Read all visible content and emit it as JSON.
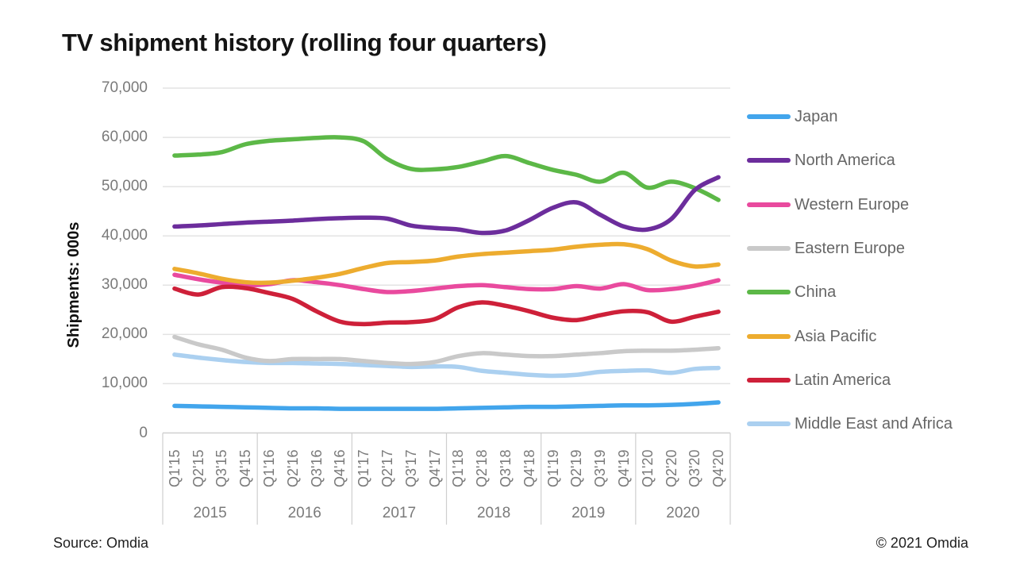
{
  "title": "TV shipment history (rolling four quarters)",
  "y_axis": {
    "title": "Shipments: 000s",
    "tick_labels": [
      "0",
      "10,000",
      "20,000",
      "30,000",
      "40,000",
      "50,000",
      "60,000",
      "70,000"
    ]
  },
  "x_axis": {
    "quarter_labels": [
      "Q1'15",
      "Q2'15",
      "Q3'15",
      "Q4'15",
      "Q1'16",
      "Q2'16",
      "Q3'16",
      "Q4'16",
      "Q1'17",
      "Q2'17",
      "Q3'17",
      "Q4'17",
      "Q1'18",
      "Q2'18",
      "Q3'18",
      "Q4'18",
      "Q1'19",
      "Q2'19",
      "Q3'19",
      "Q4'19",
      "Q1'20",
      "Q2'20",
      "Q3'20",
      "Q4'20"
    ],
    "year_labels": [
      "2015",
      "2016",
      "2017",
      "2018",
      "2019",
      "2020"
    ]
  },
  "legend": [
    {
      "label": "Japan",
      "color": "#42A5EC"
    },
    {
      "label": "North America",
      "color": "#6C2D9C"
    },
    {
      "label": "Western Europe",
      "color": "#E94A9E"
    },
    {
      "label": "Eastern Europe",
      "color": "#C9C9C9"
    },
    {
      "label": "China",
      "color": "#5CB847"
    },
    {
      "label": "Asia Pacific",
      "color": "#EDAC2F"
    },
    {
      "label": "Latin America",
      "color": "#CE2039"
    },
    {
      "label": "Middle East and Africa",
      "color": "#ABD0F0"
    }
  ],
  "footer": {
    "source": "Source: Omdia",
    "copyright": "© 2021 Omdia"
  },
  "chart_data": {
    "type": "line",
    "title": "TV shipment history (rolling four quarters)",
    "ylabel": "Shipments: 000s",
    "ylim": [
      0,
      70000
    ],
    "grid": "horizontal",
    "legend_position": "right",
    "x": [
      "Q1'15",
      "Q2'15",
      "Q3'15",
      "Q4'15",
      "Q1'16",
      "Q2'16",
      "Q3'16",
      "Q4'16",
      "Q1'17",
      "Q2'17",
      "Q3'17",
      "Q4'17",
      "Q1'18",
      "Q2'18",
      "Q3'18",
      "Q4'18",
      "Q1'19",
      "Q2'19",
      "Q3'19",
      "Q4'19",
      "Q1'20",
      "Q2'20",
      "Q3'20",
      "Q4'20"
    ],
    "x_groups": [
      "2015",
      "2016",
      "2017",
      "2018",
      "2019",
      "2020"
    ],
    "series": [
      {
        "name": "Japan",
        "color": "#42A5EC",
        "values": [
          5500,
          5400,
          5300,
          5200,
          5100,
          5000,
          5000,
          4900,
          4900,
          4900,
          4900,
          4900,
          5000,
          5100,
          5200,
          5300,
          5300,
          5400,
          5500,
          5600,
          5600,
          5700,
          5900,
          6200
        ]
      },
      {
        "name": "North America",
        "color": "#6C2D9C",
        "values": [
          41900,
          42100,
          42400,
          42700,
          42900,
          43100,
          43400,
          43600,
          43700,
          43500,
          42100,
          41600,
          41300,
          40600,
          41100,
          43200,
          45700,
          46800,
          44300,
          41900,
          41300,
          43400,
          49300,
          51900
        ]
      },
      {
        "name": "Western Europe",
        "color": "#E94A9E",
        "values": [
          32100,
          31200,
          30500,
          30000,
          30200,
          31000,
          30600,
          30000,
          29200,
          28600,
          28800,
          29300,
          29800,
          30000,
          29600,
          29200,
          29200,
          29800,
          29300,
          30200,
          29000,
          29200,
          29900,
          31000
        ]
      },
      {
        "name": "Eastern Europe",
        "color": "#C9C9C9",
        "values": [
          19500,
          18000,
          16900,
          15300,
          14600,
          15000,
          15000,
          15000,
          14600,
          14200,
          14000,
          14400,
          15600,
          16200,
          15900,
          15600,
          15600,
          15900,
          16200,
          16600,
          16700,
          16700,
          16900,
          17200
        ]
      },
      {
        "name": "China",
        "color": "#5CB847",
        "values": [
          56300,
          56500,
          57000,
          58600,
          59300,
          59600,
          59900,
          60000,
          59200,
          55600,
          53600,
          53500,
          54000,
          55100,
          56200,
          54800,
          53400,
          52400,
          51000,
          52800,
          49800,
          51000,
          49700,
          47300
        ]
      },
      {
        "name": "Asia Pacific",
        "color": "#EDAC2F",
        "values": [
          33300,
          32400,
          31300,
          30600,
          30500,
          30900,
          31500,
          32300,
          33500,
          34500,
          34700,
          35000,
          35800,
          36300,
          36600,
          36900,
          37200,
          37800,
          38200,
          38300,
          37300,
          35000,
          33800,
          34200
        ]
      },
      {
        "name": "Latin America",
        "color": "#CE2039",
        "values": [
          29300,
          28100,
          29600,
          29400,
          28400,
          27200,
          24700,
          22600,
          22100,
          22400,
          22500,
          23100,
          25500,
          26500,
          25800,
          24700,
          23400,
          22900,
          23900,
          24700,
          24500,
          22600,
          23600,
          24600
        ]
      },
      {
        "name": "Middle East and Africa",
        "color": "#ABD0F0",
        "values": [
          15900,
          15300,
          14800,
          14400,
          14200,
          14200,
          14100,
          14000,
          13800,
          13600,
          13400,
          13500,
          13400,
          12600,
          12200,
          11800,
          11600,
          11800,
          12400,
          12600,
          12700,
          12200,
          13000,
          13200
        ]
      }
    ]
  }
}
